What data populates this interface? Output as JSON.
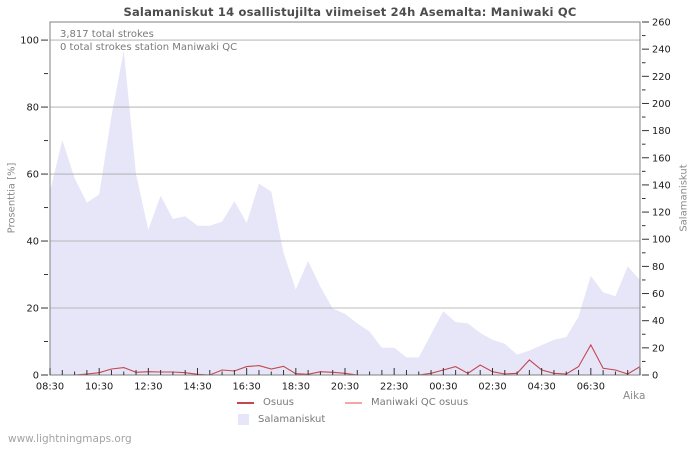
{
  "page": {
    "watermark": "www.lightningmaps.org"
  },
  "annotations": {
    "total_strokes": "3,817 total strokes",
    "station_strokes": "0 total strokes station Maniwaki QC"
  },
  "legend": {
    "osuus": "Osuus",
    "maniwaki": "Maniwaki QC osuus",
    "salamaniskut": "Salamaniskut"
  },
  "colors": {
    "area_fill": "#e6e6f8",
    "osuus_line": "#c4474d",
    "maniwaki_line": "#f2a6a6",
    "grid": "#a8a8a8",
    "frame": "#808080",
    "tick": "#333333",
    "tick_text": "#1a1a1a"
  },
  "chart_data": {
    "type": "area",
    "title": "Salamaniskut 14 osallistujilta viimeiset 24h Asemalta: Maniwaki QC",
    "x_label": "Aika",
    "y_left_label": "Prosenttia [%]",
    "y_right_label": "Salamaniskut",
    "y_left_ticks": [
      0,
      20,
      40,
      60,
      80,
      100
    ],
    "y_right_ticks": [
      0,
      20,
      40,
      60,
      80,
      100,
      120,
      140,
      160,
      180,
      200,
      220,
      240,
      260
    ],
    "y_left_range": [
      0,
      105.4
    ],
    "y_right_range": [
      0,
      260
    ],
    "grid": "horizontal",
    "legend_position": "bottom",
    "x_major_labels": [
      "08:30",
      "10:30",
      "12:30",
      "14:30",
      "16:30",
      "18:30",
      "20:30",
      "22:30",
      "00:30",
      "02:30",
      "04:30",
      "06:30"
    ],
    "x": [
      "08:30",
      "09:00",
      "09:30",
      "10:00",
      "10:30",
      "11:00",
      "11:30",
      "12:00",
      "12:30",
      "13:00",
      "13:30",
      "14:00",
      "14:30",
      "15:00",
      "15:30",
      "16:00",
      "16:30",
      "17:00",
      "17:30",
      "18:00",
      "18:30",
      "19:00",
      "19:30",
      "20:00",
      "20:30",
      "21:00",
      "21:30",
      "22:00",
      "22:30",
      "23:00",
      "23:30",
      "00:00",
      "00:30",
      "01:00",
      "01:30",
      "02:00",
      "02:30",
      "03:00",
      "03:30",
      "04:00",
      "04:30",
      "05:00",
      "05:30",
      "06:00",
      "06:30",
      "07:00",
      "07:30",
      "08:00",
      "08:30"
    ],
    "series": [
      {
        "name": "Salamaniskut",
        "type": "area",
        "axis": "right",
        "values": [
          135,
          173,
          145,
          127,
          133,
          191,
          239,
          148,
          107,
          132,
          115,
          117,
          110,
          110,
          113,
          128,
          112,
          141,
          135,
          90,
          63,
          84,
          65,
          49,
          45,
          38,
          32,
          20,
          20,
          13,
          13,
          30,
          47,
          39,
          38,
          31,
          26,
          23,
          15,
          18,
          22,
          26,
          28,
          43,
          73,
          61,
          58,
          80,
          70
        ]
      },
      {
        "name": "Osuus",
        "type": "line",
        "axis": "left",
        "values": [
          0,
          0,
          0,
          0.3,
          0.7,
          1.8,
          2.2,
          0.8,
          1.0,
          0.9,
          0.9,
          0.7,
          0.2,
          0,
          1.5,
          1.2,
          2.5,
          2.8,
          1.8,
          2.6,
          0.4,
          0.2,
          1.0,
          0.8,
          0.5,
          0,
          0,
          0,
          0,
          0,
          0,
          0.5,
          1.5,
          2.5,
          0.5,
          3.0,
          1.0,
          0.3,
          0.5,
          4.5,
          1.5,
          0.5,
          0.3,
          2.5,
          9.0,
          2.0,
          1.5,
          0.3,
          2.5
        ]
      },
      {
        "name": "Maniwaki QC osuus",
        "type": "line",
        "axis": "left",
        "values": [
          0,
          0,
          0,
          0,
          0,
          0,
          0,
          0,
          0,
          0,
          0,
          0,
          0,
          0,
          0,
          0,
          0,
          0,
          0,
          0,
          0,
          0,
          0,
          0,
          0,
          0,
          0,
          0,
          0,
          0,
          0,
          0,
          0,
          0,
          0,
          0,
          0,
          0,
          0,
          0,
          0,
          0,
          0,
          0,
          0,
          0,
          0,
          0,
          0
        ]
      }
    ]
  }
}
